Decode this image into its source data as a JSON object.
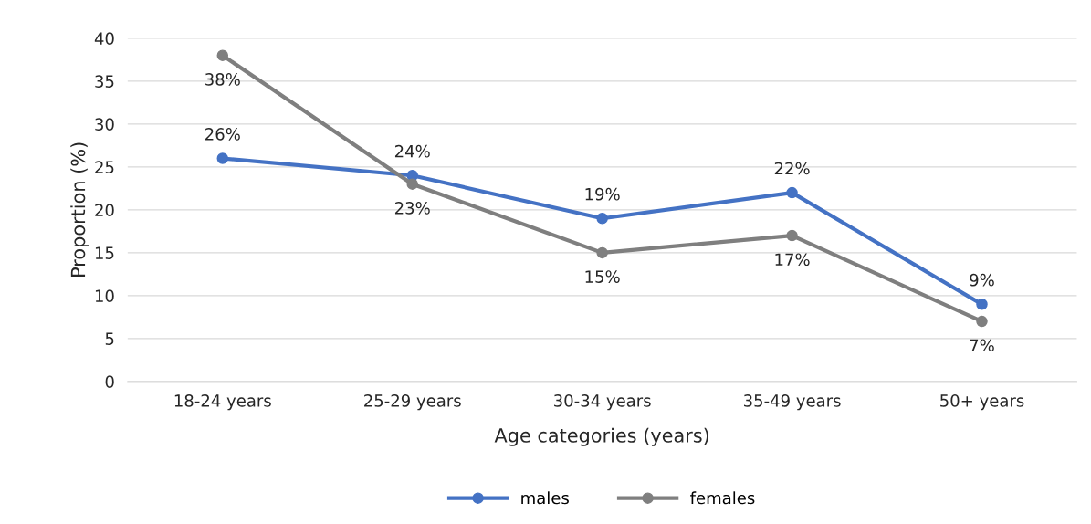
{
  "chart_data": {
    "type": "line",
    "xlabel": "Age categories (years)",
    "ylabel": "Proportion (%)",
    "categories": [
      "18-24 years",
      "25-29 years",
      "30-34 years",
      "35-49 years",
      "50+ years"
    ],
    "series": [
      {
        "name": "males",
        "color": "#4472c4",
        "values": [
          26,
          24,
          19,
          22,
          9
        ],
        "value_labels": [
          "26%",
          "24%",
          "19%",
          "22%",
          "9%"
        ]
      },
      {
        "name": "females",
        "color": "#7f7f7f",
        "values": [
          38,
          23,
          15,
          17,
          7
        ],
        "value_labels": [
          "38%",
          "23%",
          "15%",
          "17%",
          "7%"
        ]
      }
    ],
    "ylim": [
      0,
      40
    ],
    "yticks": [
      0,
      5,
      10,
      15,
      20,
      25,
      30,
      35,
      40
    ],
    "grid": "y",
    "legend": "bottom",
    "marker": "circle",
    "line_style": "solid"
  }
}
